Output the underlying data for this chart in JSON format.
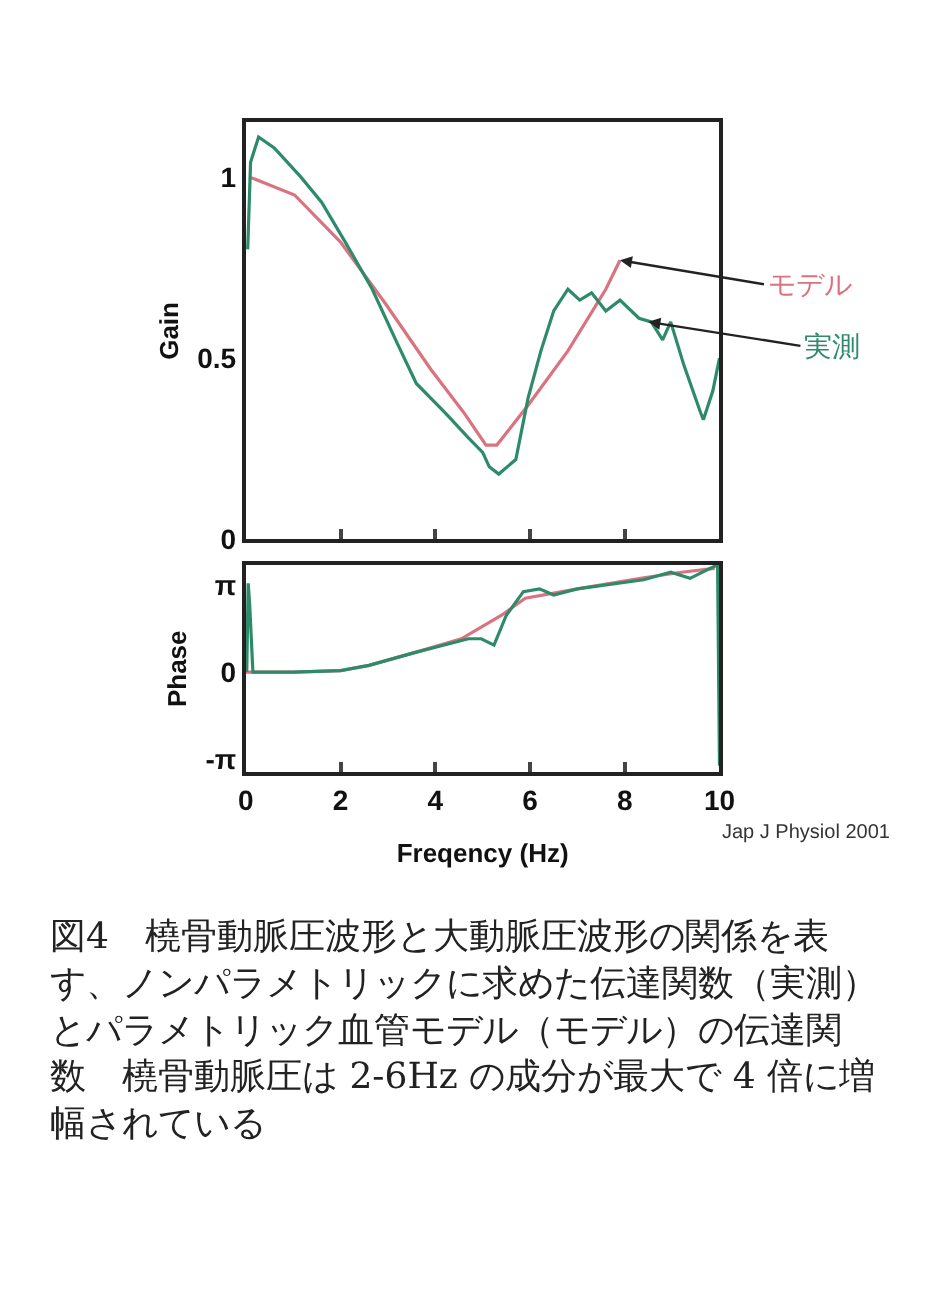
{
  "chart_data": [
    {
      "type": "line",
      "ylabel": "Gain",
      "xlim": [
        0,
        10
      ],
      "xticks": [
        0,
        2,
        4,
        6,
        8,
        10
      ],
      "ylim": [
        0,
        1.15
      ],
      "yticks": [
        0,
        0.5,
        1
      ],
      "tick_labels": "y",
      "marker": "none",
      "line_style": "solid",
      "series": [
        {
          "color": "#d9737f",
          "x": [
            0.07,
            1.03,
            2.0,
            2.95,
            3.9,
            4.6,
            5.07,
            5.3,
            5.96,
            6.8,
            7.6,
            7.9
          ],
          "values": [
            1.0,
            0.95,
            0.82,
            0.65,
            0.47,
            0.35,
            0.26,
            0.26,
            0.37,
            0.52,
            0.69,
            0.77
          ]
        },
        {
          "color": "#2e8b6a",
          "x": [
            0.04,
            0.1,
            0.27,
            0.6,
            1.16,
            1.6,
            2.1,
            2.67,
            3.2,
            3.6,
            4.2,
            4.7,
            5.0,
            5.14,
            5.34,
            5.7,
            5.96,
            6.23,
            6.5,
            6.8,
            7.05,
            7.3,
            7.6,
            7.9,
            8.3,
            8.56,
            8.8,
            8.97,
            9.25,
            9.6,
            9.66,
            9.86,
            10.0
          ],
          "values": [
            0.8,
            1.04,
            1.11,
            1.08,
            1.0,
            0.93,
            0.82,
            0.69,
            0.54,
            0.43,
            0.35,
            0.28,
            0.24,
            0.2,
            0.18,
            0.22,
            0.39,
            0.52,
            0.63,
            0.69,
            0.66,
            0.68,
            0.63,
            0.66,
            0.61,
            0.6,
            0.55,
            0.6,
            0.48,
            0.35,
            0.33,
            0.41,
            0.5
          ]
        }
      ],
      "annotations": [
        {
          "text": "モデル",
          "x": 7.9,
          "y": 0.77
        },
        {
          "text": "実測",
          "x": 8.5,
          "y": 0.6
        }
      ]
    },
    {
      "type": "line",
      "ylabel": "Phase",
      "xlabel": "Freqency (Hz)",
      "xlim": [
        0,
        10
      ],
      "xticks": [
        0,
        2,
        4,
        6,
        8,
        10
      ],
      "ylim": [
        -3.62,
        3.86
      ],
      "yticks": [
        {
          "value": 3.1416,
          "label": "π"
        },
        0,
        {
          "value": -3.1416,
          "label": "-π"
        }
      ],
      "marker": "none",
      "line_style": "solid",
      "series": [
        {
          "color": "#d9737f",
          "x": [
            0.0,
            1.0,
            2.0,
            2.6,
            3.6,
            4.55,
            5.4,
            5.9,
            7.0,
            8.4,
            9.2,
            9.9
          ],
          "values": [
            0.0,
            0.0,
            0.05,
            0.24,
            0.72,
            1.2,
            2.05,
            2.66,
            3.0,
            3.4,
            3.6,
            3.74
          ]
        },
        {
          "color": "#2e8b6a",
          "x": [
            0.02,
            0.05,
            0.08,
            0.15,
            1.0,
            2.0,
            2.6,
            3.6,
            4.7,
            4.97,
            5.24,
            5.5,
            5.86,
            6.2,
            6.5,
            7.0,
            8.4,
            8.97,
            9.38,
            9.8,
            9.96,
            10.0
          ],
          "values": [
            0.0,
            3.2,
            2.5,
            0.0,
            0.0,
            0.05,
            0.24,
            0.72,
            1.2,
            1.2,
            0.97,
            2.05,
            2.9,
            3.0,
            2.78,
            3.0,
            3.33,
            3.6,
            3.38,
            3.74,
            3.86,
            -3.38
          ]
        }
      ],
      "annotations": [
        "Jap J Physiol 2001",
        "図4　橈骨動脈圧波形と大動脈圧波形の関係を表す、ノンパラメトリックに求めた伝達関数（実測）とパラメトリック血管モデル（モデル）の伝達関数　橈骨動脈圧は 2-6Hz の成分が最大で 4 倍に増幅されている"
      ]
    }
  ]
}
